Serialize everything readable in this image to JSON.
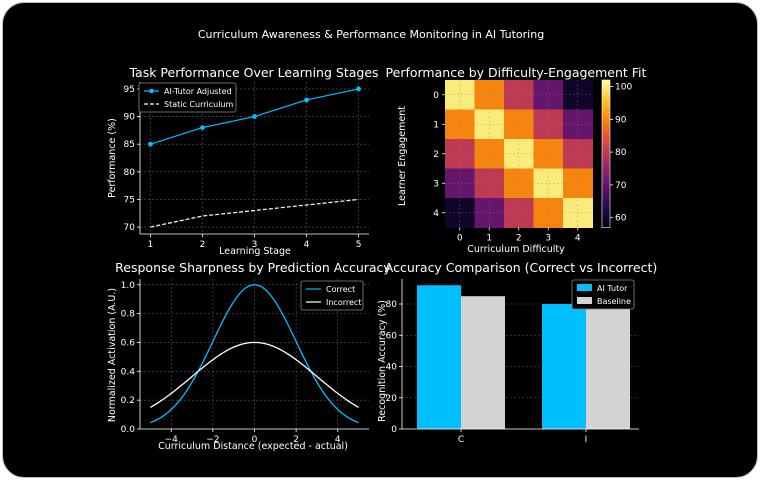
{
  "figure": {
    "suptitle": "Curriculum Awareness & Performance Monitoring in AI Tutoring",
    "colors": {
      "background": "#000000",
      "accent": "#00bfff",
      "baseline": "#d3d3d3",
      "grid": "#5a5a5a"
    }
  },
  "chart_data": [
    {
      "type": "line",
      "title": "Task Performance Over Learning Stages",
      "xlabel": "Learning Stage",
      "ylabel": "Performance (%)",
      "x": [
        1,
        2,
        3,
        4,
        5
      ],
      "xticks": [
        "1",
        "2",
        "3",
        "4",
        "5"
      ],
      "yticks": [
        "70",
        "75",
        "80",
        "85",
        "90",
        "95"
      ],
      "xlim": [
        0.8,
        5.2
      ],
      "ylim": [
        68.75,
        96.25
      ],
      "grid": true,
      "legend_position": "upper-left",
      "series": [
        {
          "name": "AI-Tutor Adjusted",
          "values": [
            85,
            88,
            90,
            93,
            95
          ],
          "color": "#00bfff",
          "style": "solid",
          "marker": "circle"
        },
        {
          "name": "Static Curriculum",
          "values": [
            70,
            72,
            73,
            74,
            75
          ],
          "color": "#ffffff",
          "style": "dashed"
        }
      ]
    },
    {
      "type": "heatmap",
      "title": "Performance by Difficulty-Engagement Fit",
      "xlabel": "Curriculum Difficulty",
      "ylabel": "Learner Engagement",
      "xticks": [
        "0",
        "1",
        "2",
        "3",
        "4"
      ],
      "yticks": [
        "0",
        "1",
        "2",
        "3",
        "4"
      ],
      "colorbar_ticks": [
        "60",
        "70",
        "80",
        "90",
        "100"
      ],
      "vmin": 57,
      "vmax": 102,
      "colormap": "inferno",
      "grid": true,
      "matrix": [
        [
          100,
          90,
          80,
          70,
          60
        ],
        [
          90,
          100,
          90,
          80,
          70
        ],
        [
          80,
          90,
          100,
          90,
          80
        ],
        [
          70,
          80,
          90,
          100,
          90
        ],
        [
          60,
          70,
          80,
          90,
          100
        ]
      ]
    },
    {
      "type": "line",
      "title": "Response Sharpness by Prediction Accuracy",
      "xlabel": "Curriculum Distance (expected - actual)",
      "ylabel": "Normalized Activation (A.U.)",
      "xticks": [
        "−4",
        "−2",
        "0",
        "2",
        "4"
      ],
      "yticks": [
        "0.0",
        "0.2",
        "0.4",
        "0.6",
        "0.8",
        "1.0"
      ],
      "xlim": [
        -5.5,
        5.5
      ],
      "ylim": [
        0,
        1.04
      ],
      "grid": true,
      "legend_position": "upper-right",
      "curve_form": "amplitude * exp(-x^2 / (2 * sigma^2)), x from -5 to 5",
      "series": [
        {
          "name": "Correct",
          "amplitude": 1.0,
          "sigma": 2.0,
          "color": "#00bfff"
        },
        {
          "name": "Incorrect",
          "amplitude": 0.6,
          "sigma": 3.0,
          "color": "#ffffff"
        }
      ]
    },
    {
      "type": "bar",
      "title": "Accuracy Comparison (Correct vs Incorrect)",
      "xlabel": "",
      "ylabel": "Recognition Accuracy (%)",
      "categories": [
        "C",
        "I"
      ],
      "yticks": [
        "0",
        "20",
        "40",
        "60",
        "80"
      ],
      "ylim": [
        0,
        96
      ],
      "grid": true,
      "legend_position": "upper-right",
      "series": [
        {
          "name": "AI Tutor",
          "values": [
            92,
            80
          ],
          "color": "#00bfff"
        },
        {
          "name": "Baseline",
          "values": [
            85,
            78
          ],
          "color": "#d3d3d3"
        }
      ]
    }
  ]
}
